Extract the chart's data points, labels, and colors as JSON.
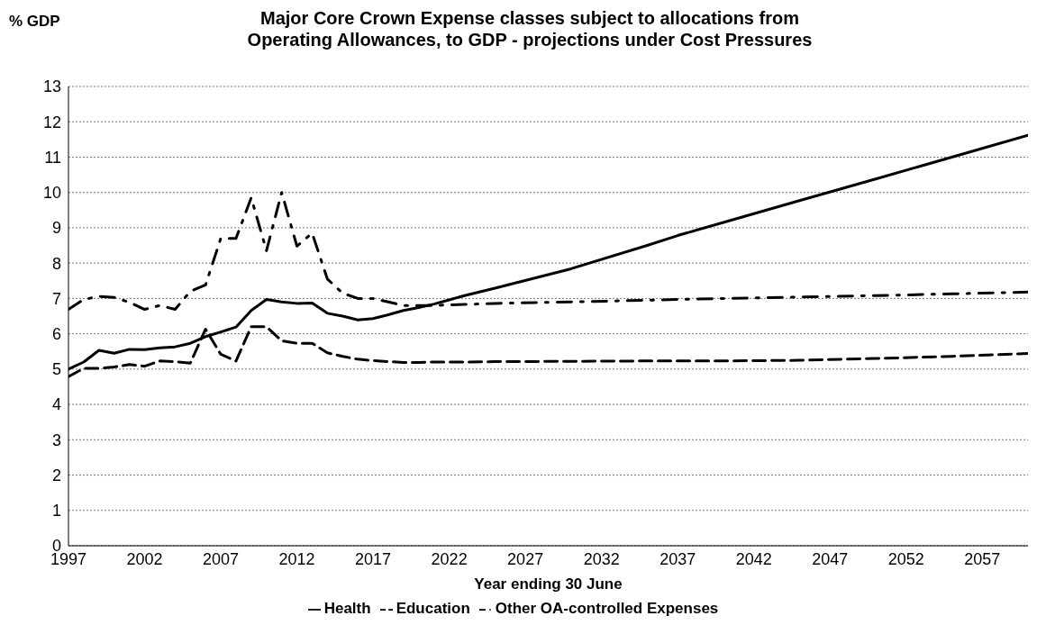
{
  "chart_data": {
    "type": "line",
    "title": "Major Core Crown Expense classes subject to allocations from Operating Allowances,  to GDP - projections under Cost Pressures",
    "ylabel": "% GDP",
    "xlabel": "Year ending 30 June",
    "x": [
      1997,
      1998,
      1999,
      2000,
      2001,
      2002,
      2003,
      2004,
      2005,
      2006,
      2007,
      2008,
      2009,
      2010,
      2011,
      2012,
      2013,
      2014,
      2015,
      2016,
      2017,
      2018,
      2019,
      2020,
      2021,
      2022,
      2023,
      2025,
      2030,
      2035,
      2037,
      2040,
      2045,
      2050,
      2055,
      2060
    ],
    "series": [
      {
        "name": "Health",
        "color": "#000000",
        "line_style": "solid",
        "values": [
          5.0,
          5.2,
          5.53,
          5.45,
          5.56,
          5.55,
          5.6,
          5.63,
          5.73,
          5.92,
          6.05,
          6.19,
          6.66,
          6.97,
          6.9,
          6.86,
          6.87,
          6.58,
          6.5,
          6.39,
          6.43,
          6.54,
          6.66,
          6.74,
          6.84,
          6.96,
          7.08,
          7.29,
          7.84,
          8.5,
          8.78,
          9.15,
          9.77,
          10.38,
          11.0,
          11.62
        ]
      },
      {
        "name": "Education",
        "color": "#000000",
        "line_style": "dashed",
        "values": [
          4.79,
          5.02,
          5.02,
          5.06,
          5.13,
          5.08,
          5.23,
          5.21,
          5.17,
          6.13,
          5.42,
          5.23,
          6.2,
          6.2,
          5.8,
          5.73,
          5.73,
          5.46,
          5.36,
          5.28,
          5.24,
          5.21,
          5.19,
          5.19,
          5.2,
          5.2,
          5.2,
          5.21,
          5.22,
          5.23,
          5.23,
          5.23,
          5.25,
          5.3,
          5.36,
          5.44
        ]
      },
      {
        "name": "Other OA-controlled Expenses",
        "color": "#000000",
        "line_style": "dotted",
        "values": [
          6.69,
          6.97,
          7.06,
          7.03,
          6.89,
          6.69,
          6.8,
          6.69,
          7.2,
          7.38,
          8.7,
          8.7,
          9.85,
          8.35,
          10.0,
          8.48,
          8.85,
          7.55,
          7.15,
          7.0,
          7.0,
          6.9,
          6.8,
          6.8,
          6.8,
          6.82,
          6.83,
          6.86,
          6.9,
          6.95,
          6.97,
          7.0,
          7.04,
          7.08,
          7.13,
          7.18
        ]
      }
    ],
    "xlim": [
      1997,
      2060
    ],
    "xticks": [
      1997,
      2002,
      2007,
      2012,
      2017,
      2022,
      2027,
      2032,
      2037,
      2042,
      2047,
      2052,
      2057
    ],
    "ylim": [
      0,
      13
    ],
    "yticks": [
      0,
      1,
      2,
      3,
      4,
      5,
      6,
      7,
      8,
      9,
      10,
      11,
      12,
      13
    ],
    "grid": "y",
    "legend": "bottom",
    "marker": "none"
  }
}
